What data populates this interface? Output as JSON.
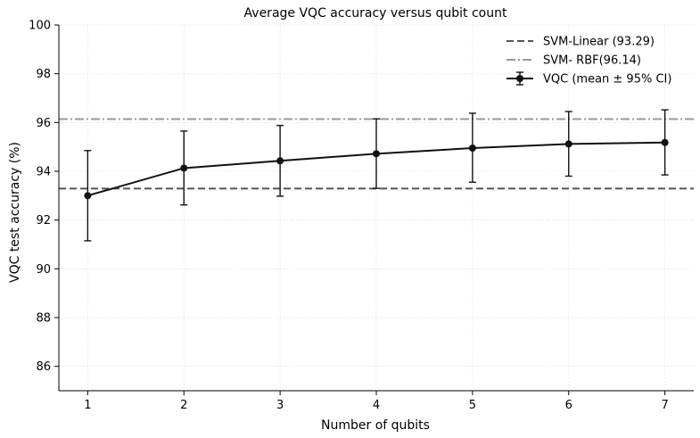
{
  "chart_data": {
    "type": "line",
    "title": "Average VQC accuracy versus qubit count",
    "xlabel": "Number of qubits",
    "ylabel": "VQC test accuracy (%)",
    "x": [
      1,
      2,
      3,
      4,
      5,
      6,
      7
    ],
    "xlim": [
      0.7,
      7.3
    ],
    "ylim": [
      85,
      100
    ],
    "yticks": [
      86,
      88,
      90,
      92,
      94,
      96,
      98,
      100
    ],
    "grid": true,
    "legend_position": "top-right",
    "series": [
      {
        "name": "VQC (mean ± 95% CI)",
        "color": "#111111",
        "values": [
          93.0,
          94.13,
          94.43,
          94.72,
          94.95,
          95.12,
          95.18
        ],
        "ci_low": [
          91.15,
          92.62,
          92.98,
          93.3,
          93.55,
          93.8,
          93.85
        ],
        "ci_high": [
          94.85,
          95.65,
          95.88,
          96.15,
          96.38,
          96.45,
          96.52
        ]
      }
    ],
    "reference_lines": [
      {
        "name": "SVM-Linear (93.29)",
        "value": 93.29,
        "color": "#555555",
        "style": "dashed"
      },
      {
        "name": "SVM- RBF(96.14)",
        "value": 96.14,
        "color": "#999999",
        "style": "dashdot"
      }
    ]
  }
}
